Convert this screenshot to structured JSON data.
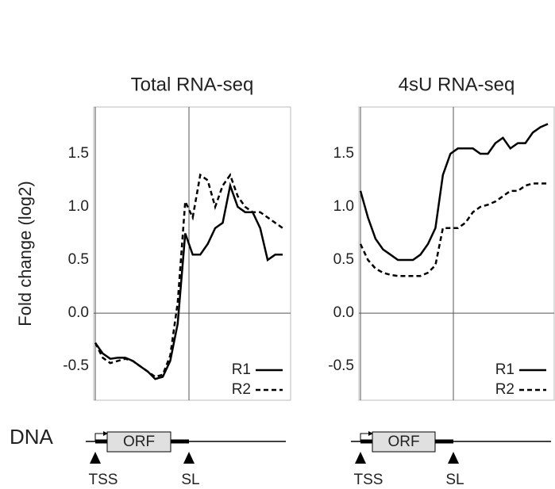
{
  "chart_data": [
    {
      "type": "line",
      "title": "Total RNA-seq",
      "ylabel": "Fold change (log2)",
      "ylim": [
        -0.82,
        1.94
      ],
      "yticks": [
        -0.5,
        {
          "value": 0,
          "label": "0.0"
        },
        0.5,
        {
          "value": 1,
          "label": "1.0"
        },
        1.5
      ],
      "legend": "lower right",
      "series": [
        {
          "name": "R1",
          "color": "#000000",
          "dash": false,
          "values": [
            -0.28,
            -0.38,
            -0.43,
            -0.42,
            -0.42,
            -0.45,
            -0.5,
            -0.55,
            -0.62,
            -0.6,
            -0.45,
            -0.1,
            0.75,
            0.55,
            0.55,
            0.65,
            0.8,
            0.85,
            1.2,
            1.0,
            0.95,
            0.95,
            0.8,
            0.5,
            0.55,
            0.55
          ]
        },
        {
          "name": "R2",
          "color": "#000000",
          "dash": true,
          "values": [
            -0.28,
            -0.42,
            -0.47,
            -0.45,
            -0.43,
            -0.45,
            -0.5,
            -0.55,
            -0.6,
            -0.58,
            -0.4,
            0.1,
            1.05,
            0.9,
            1.3,
            1.25,
            1.0,
            1.2,
            1.3,
            1.1,
            1.0,
            0.95,
            0.95,
            0.9,
            0.85,
            0.8
          ]
        }
      ]
    },
    {
      "type": "line",
      "title": "4sU RNA-seq",
      "ylim": [
        -0.82,
        1.94
      ],
      "yticks": [
        -0.5,
        {
          "value": 0,
          "label": "0.0"
        },
        0.5,
        {
          "value": 1,
          "label": "1.0"
        },
        1.5
      ],
      "legend": "lower right",
      "series": [
        {
          "name": "R1",
          "color": "#000000",
          "dash": false,
          "values": [
            1.15,
            0.9,
            0.7,
            0.6,
            0.55,
            0.5,
            0.5,
            0.5,
            0.55,
            0.65,
            0.8,
            1.3,
            1.5,
            1.55,
            1.55,
            1.55,
            1.5,
            1.5,
            1.6,
            1.65,
            1.55,
            1.6,
            1.6,
            1.7,
            1.75,
            1.78
          ]
        },
        {
          "name": "R2",
          "color": "#000000",
          "dash": true,
          "values": [
            0.65,
            0.5,
            0.42,
            0.38,
            0.36,
            0.35,
            0.35,
            0.35,
            0.35,
            0.38,
            0.45,
            0.8,
            0.8,
            0.8,
            0.85,
            0.95,
            1.0,
            1.02,
            1.05,
            1.1,
            1.15,
            1.15,
            1.2,
            1.22,
            1.22,
            1.22
          ]
        }
      ]
    }
  ],
  "dna_label": "DNA",
  "gene_diagrams": [
    {
      "orf": "ORF",
      "tss": "TSS",
      "sl": "SL"
    },
    {
      "orf": "ORF",
      "tss": "TSS",
      "sl": "SL"
    }
  ]
}
